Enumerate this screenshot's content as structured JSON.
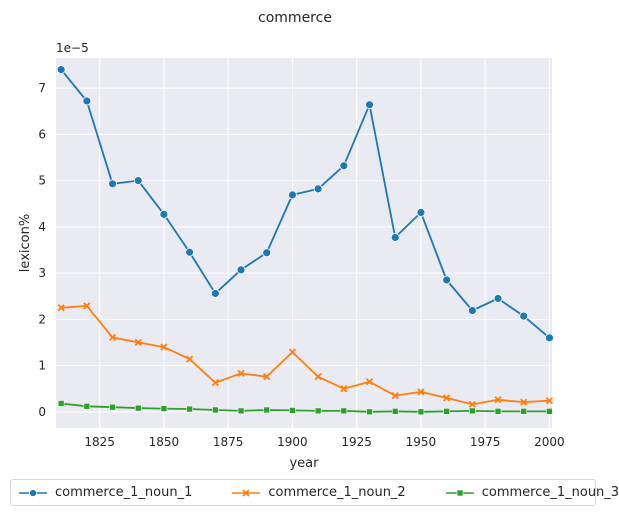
{
  "chart_data": {
    "type": "line",
    "title": "commerce",
    "xlabel": "year",
    "ylabel": "lexicon%",
    "y_scale_note": "1e−5",
    "xlim": [
      1808,
      2001
    ],
    "ylim": [
      -0.35,
      7.65
    ],
    "x_ticks": [
      1825,
      1850,
      1875,
      1900,
      1925,
      1950,
      1975,
      2000
    ],
    "y_ticks": [
      0,
      1,
      2,
      3,
      4,
      5,
      6,
      7
    ],
    "grid": true,
    "legend_position": "bottom",
    "x": [
      1810,
      1820,
      1830,
      1840,
      1850,
      1860,
      1870,
      1880,
      1890,
      1900,
      1910,
      1920,
      1930,
      1940,
      1950,
      1960,
      1970,
      1980,
      1990,
      2000
    ],
    "series": [
      {
        "name": "commerce_1_noun_1",
        "color": "#1f77b4",
        "marker": "circle",
        "values": [
          7.4,
          6.72,
          4.93,
          5.0,
          4.27,
          3.45,
          2.56,
          3.07,
          3.44,
          4.69,
          4.82,
          5.32,
          6.64,
          3.77,
          4.31,
          2.85,
          2.19,
          2.45,
          2.07,
          1.6
        ]
      },
      {
        "name": "commerce_1_noun_2",
        "color": "#ff7f0e",
        "marker": "x",
        "values": [
          2.25,
          2.29,
          1.61,
          1.5,
          1.4,
          1.14,
          0.63,
          0.83,
          0.76,
          1.29,
          0.76,
          0.5,
          0.65,
          0.35,
          0.43,
          0.3,
          0.16,
          0.26,
          0.21,
          0.24
        ]
      },
      {
        "name": "commerce_1_noun_3",
        "color": "#2ca02c",
        "marker": "square",
        "values": [
          0.18,
          0.12,
          0.1,
          0.08,
          0.07,
          0.06,
          0.04,
          0.02,
          0.04,
          0.03,
          0.02,
          0.02,
          0.0,
          0.01,
          0.0,
          0.01,
          0.02,
          0.01,
          0.01,
          0.01
        ]
      }
    ]
  }
}
